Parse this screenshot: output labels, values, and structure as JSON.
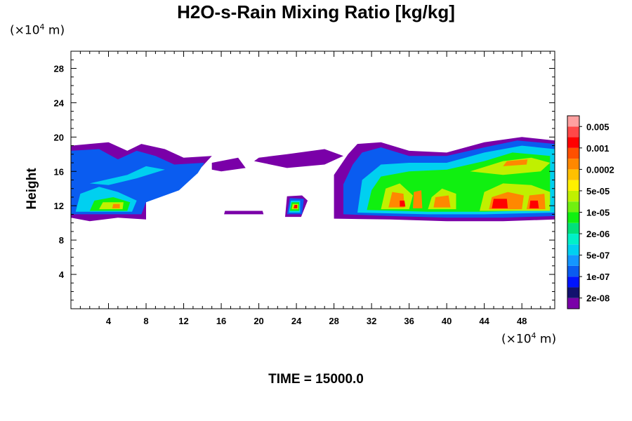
{
  "chart_data": {
    "type": "heatmap",
    "title": "H2O-s-Rain Mixing Ratio [kg/kg]",
    "xlabel": "",
    "ylabel": "Height",
    "x_unit_prefix": "(×10",
    "x_unit_exp": "4",
    "x_unit_suffix": " m)",
    "y_unit_prefix": "(×10",
    "y_unit_exp": "4",
    "y_unit_suffix": " m)",
    "xlim": [
      0,
      51.5
    ],
    "ylim": [
      0,
      30
    ],
    "x_ticks": [
      4,
      8,
      12,
      16,
      20,
      24,
      28,
      32,
      36,
      40,
      44,
      48
    ],
    "y_ticks": [
      4,
      8,
      12,
      16,
      20,
      24,
      28
    ],
    "footer": "TIME = 15000.0",
    "colorbar": {
      "colors": [
        "#7a00a8",
        "#12126e",
        "#0014ff",
        "#0a5cf0",
        "#1496ff",
        "#00d0f0",
        "#00f0c8",
        "#00e07a",
        "#10f010",
        "#70f010",
        "#c0f000",
        "#fff000",
        "#ffc000",
        "#ff8800",
        "#ff5000",
        "#ff0000",
        "#ff4848",
        "#ffa0a0"
      ],
      "labels": [
        "2e-08",
        "1e-07",
        "5e-07",
        "2e-06",
        "1e-05",
        "5e-05",
        "0.0002",
        "0.001",
        "0.005"
      ]
    },
    "regions": [
      {
        "level": 0,
        "points": [
          [
            0.0,
            10.6
          ],
          [
            2.0,
            10.2
          ],
          [
            5.0,
            10.6
          ],
          [
            8.0,
            10.4
          ],
          [
            8.0,
            13.2
          ],
          [
            12.0,
            14.6
          ],
          [
            14.0,
            16.6
          ],
          [
            15.0,
            17.8
          ],
          [
            12.0,
            17.6
          ],
          [
            10.0,
            18.6
          ],
          [
            7.5,
            19.2
          ],
          [
            6.0,
            18.4
          ],
          [
            4.0,
            19.4
          ],
          [
            2.0,
            19.2
          ],
          [
            0.0,
            19.0
          ]
        ]
      },
      {
        "level": 0,
        "points": [
          [
            15.0,
            17.0
          ],
          [
            17.8,
            17.6
          ],
          [
            18.6,
            16.4
          ],
          [
            16.0,
            16.0
          ],
          [
            15.0,
            16.2
          ]
        ]
      },
      {
        "level": 0,
        "points": [
          [
            19.5,
            17.2
          ],
          [
            23.0,
            16.4
          ],
          [
            27.0,
            16.8
          ],
          [
            29.0,
            17.8
          ],
          [
            27.0,
            18.6
          ],
          [
            23.0,
            18.0
          ],
          [
            20.0,
            17.6
          ]
        ]
      },
      {
        "level": 0,
        "points": [
          [
            28.0,
            10.5
          ],
          [
            34.0,
            10.4
          ],
          [
            40.0,
            10.2
          ],
          [
            46.0,
            10.2
          ],
          [
            51.5,
            10.4
          ],
          [
            51.5,
            19.6
          ],
          [
            48.0,
            20.0
          ],
          [
            44.0,
            19.4
          ],
          [
            40.0,
            18.2
          ],
          [
            36.0,
            18.4
          ],
          [
            33.0,
            19.4
          ],
          [
            30.5,
            19.2
          ],
          [
            29.5,
            18.0
          ],
          [
            28.0,
            15.6
          ]
        ]
      },
      {
        "level": 0,
        "points": [
          [
            22.8,
            10.7
          ],
          [
            24.5,
            10.7
          ],
          [
            25.2,
            12.6
          ],
          [
            24.6,
            13.2
          ],
          [
            23.0,
            13.1
          ]
        ]
      },
      {
        "level": 0,
        "points": [
          [
            16.3,
            11.0
          ],
          [
            20.5,
            11.0
          ],
          [
            20.4,
            11.4
          ],
          [
            16.4,
            11.4
          ]
        ]
      },
      {
        "level": 3,
        "points": [
          [
            0.0,
            11.0
          ],
          [
            7.5,
            11.0
          ],
          [
            8.0,
            12.4
          ],
          [
            11.5,
            13.8
          ],
          [
            13.5,
            15.8
          ],
          [
            14.2,
            17.0
          ],
          [
            11.0,
            16.8
          ],
          [
            9.0,
            17.8
          ],
          [
            7.0,
            18.4
          ],
          [
            5.0,
            17.4
          ],
          [
            3.0,
            18.6
          ],
          [
            0.0,
            18.4
          ]
        ]
      },
      {
        "level": 3,
        "points": [
          [
            29.0,
            11.0
          ],
          [
            34.0,
            10.8
          ],
          [
            40.0,
            10.6
          ],
          [
            46.0,
            10.6
          ],
          [
            51.5,
            10.8
          ],
          [
            51.5,
            19.2
          ],
          [
            47.5,
            19.6
          ],
          [
            44.0,
            18.8
          ],
          [
            40.0,
            17.8
          ],
          [
            36.0,
            17.8
          ],
          [
            33.0,
            18.8
          ],
          [
            31.0,
            18.2
          ],
          [
            30.0,
            16.8
          ],
          [
            29.0,
            14.5
          ]
        ]
      },
      {
        "level": 3,
        "points": [
          [
            23.0,
            11.0
          ],
          [
            24.6,
            11.0
          ],
          [
            24.8,
            12.8
          ],
          [
            23.3,
            12.9
          ]
        ]
      },
      {
        "level": 5,
        "points": [
          [
            0.5,
            11.3
          ],
          [
            6.5,
            11.3
          ],
          [
            7.0,
            12.6
          ],
          [
            5.0,
            13.6
          ],
          [
            3.0,
            14.2
          ],
          [
            1.0,
            13.4
          ]
        ]
      },
      {
        "level": 5,
        "points": [
          [
            2.0,
            14.6
          ],
          [
            6.0,
            15.6
          ],
          [
            8.0,
            16.6
          ],
          [
            10.0,
            16.2
          ],
          [
            7.0,
            15.2
          ],
          [
            4.0,
            14.4
          ]
        ]
      },
      {
        "level": 5,
        "points": [
          [
            30.5,
            11.2
          ],
          [
            38.0,
            11.0
          ],
          [
            44.0,
            11.0
          ],
          [
            51.5,
            11.2
          ],
          [
            51.5,
            18.6
          ],
          [
            48.0,
            19.0
          ],
          [
            44.0,
            18.2
          ],
          [
            40.0,
            17.0
          ],
          [
            36.0,
            17.0
          ],
          [
            33.0,
            16.8
          ],
          [
            31.0,
            15.0
          ]
        ]
      },
      {
        "level": 5,
        "points": [
          [
            23.2,
            11.2
          ],
          [
            24.4,
            11.2
          ],
          [
            24.4,
            12.6
          ],
          [
            23.4,
            12.6
          ]
        ]
      },
      {
        "level": 8,
        "points": [
          [
            2.0,
            11.4
          ],
          [
            6.0,
            11.4
          ],
          [
            6.3,
            12.4
          ],
          [
            4.5,
            13.0
          ],
          [
            2.5,
            12.6
          ]
        ]
      },
      {
        "level": 8,
        "points": [
          [
            31.5,
            11.5
          ],
          [
            38.0,
            11.3
          ],
          [
            44.0,
            11.3
          ],
          [
            51.0,
            11.5
          ],
          [
            51.0,
            17.8
          ],
          [
            47.0,
            18.2
          ],
          [
            44.0,
            17.2
          ],
          [
            40.0,
            16.2
          ],
          [
            36.0,
            16.0
          ],
          [
            33.0,
            15.4
          ],
          [
            32.0,
            13.8
          ]
        ]
      },
      {
        "level": 8,
        "points": [
          [
            23.3,
            11.4
          ],
          [
            24.3,
            11.4
          ],
          [
            24.3,
            12.4
          ],
          [
            23.5,
            12.4
          ]
        ]
      },
      {
        "level": 10,
        "points": [
          [
            33.0,
            11.6
          ],
          [
            36.0,
            11.6
          ],
          [
            36.4,
            13.2
          ],
          [
            35.0,
            14.6
          ],
          [
            33.5,
            14.0
          ]
        ]
      },
      {
        "level": 10,
        "points": [
          [
            38.0,
            11.6
          ],
          [
            41.0,
            11.6
          ],
          [
            41.0,
            13.4
          ],
          [
            39.5,
            14.0
          ],
          [
            38.4,
            13.0
          ]
        ]
      },
      {
        "level": 10,
        "points": [
          [
            43.5,
            11.4
          ],
          [
            51.0,
            11.4
          ],
          [
            51.0,
            13.6
          ],
          [
            49.0,
            14.4
          ],
          [
            46.0,
            14.6
          ],
          [
            44.0,
            13.6
          ]
        ]
      },
      {
        "level": 10,
        "points": [
          [
            42.5,
            16.0
          ],
          [
            46.0,
            17.2
          ],
          [
            49.0,
            17.6
          ],
          [
            51.0,
            17.0
          ],
          [
            50.0,
            16.0
          ],
          [
            46.0,
            15.6
          ]
        ]
      },
      {
        "level": 10,
        "points": [
          [
            3.0,
            11.6
          ],
          [
            5.5,
            11.6
          ],
          [
            5.6,
            12.4
          ],
          [
            3.4,
            12.4
          ]
        ]
      },
      {
        "level": 10,
        "points": [
          [
            23.5,
            11.6
          ],
          [
            24.2,
            11.6
          ],
          [
            24.2,
            12.2
          ],
          [
            23.6,
            12.2
          ]
        ]
      },
      {
        "level": 13,
        "points": [
          [
            33.8,
            11.8
          ],
          [
            35.5,
            11.8
          ],
          [
            35.4,
            13.4
          ],
          [
            34.2,
            13.6
          ]
        ]
      },
      {
        "level": 13,
        "points": [
          [
            36.4,
            11.7
          ],
          [
            37.4,
            11.7
          ],
          [
            37.3,
            13.8
          ],
          [
            36.5,
            13.6
          ]
        ]
      },
      {
        "level": 13,
        "points": [
          [
            38.6,
            11.8
          ],
          [
            40.4,
            11.8
          ],
          [
            40.2,
            13.2
          ],
          [
            38.8,
            13.0
          ]
        ]
      },
      {
        "level": 13,
        "points": [
          [
            44.5,
            11.6
          ],
          [
            48.0,
            11.6
          ],
          [
            48.2,
            13.2
          ],
          [
            46.5,
            13.6
          ],
          [
            44.8,
            13.0
          ]
        ]
      },
      {
        "level": 13,
        "points": [
          [
            48.5,
            11.6
          ],
          [
            50.5,
            11.6
          ],
          [
            50.4,
            13.4
          ],
          [
            48.8,
            13.2
          ]
        ]
      },
      {
        "level": 13,
        "points": [
          [
            46.0,
            16.6
          ],
          [
            48.5,
            16.8
          ],
          [
            48.6,
            17.4
          ],
          [
            46.4,
            17.2
          ]
        ]
      },
      {
        "level": 13,
        "points": [
          [
            4.4,
            11.7
          ],
          [
            5.2,
            11.7
          ],
          [
            5.2,
            12.2
          ],
          [
            4.5,
            12.2
          ]
        ]
      },
      {
        "level": 15,
        "points": [
          [
            44.8,
            11.7
          ],
          [
            46.5,
            11.7
          ],
          [
            46.4,
            12.8
          ],
          [
            45.0,
            12.8
          ]
        ]
      },
      {
        "level": 15,
        "points": [
          [
            48.8,
            11.7
          ],
          [
            49.8,
            11.7
          ],
          [
            49.7,
            12.6
          ],
          [
            48.9,
            12.6
          ]
        ]
      },
      {
        "level": 15,
        "points": [
          [
            35.0,
            11.9
          ],
          [
            35.6,
            11.9
          ],
          [
            35.5,
            12.6
          ],
          [
            35.0,
            12.6
          ]
        ]
      },
      {
        "level": 15,
        "points": [
          [
            23.7,
            11.7
          ],
          [
            24.1,
            11.7
          ],
          [
            24.1,
            12.1
          ],
          [
            23.8,
            12.1
          ]
        ]
      }
    ]
  }
}
